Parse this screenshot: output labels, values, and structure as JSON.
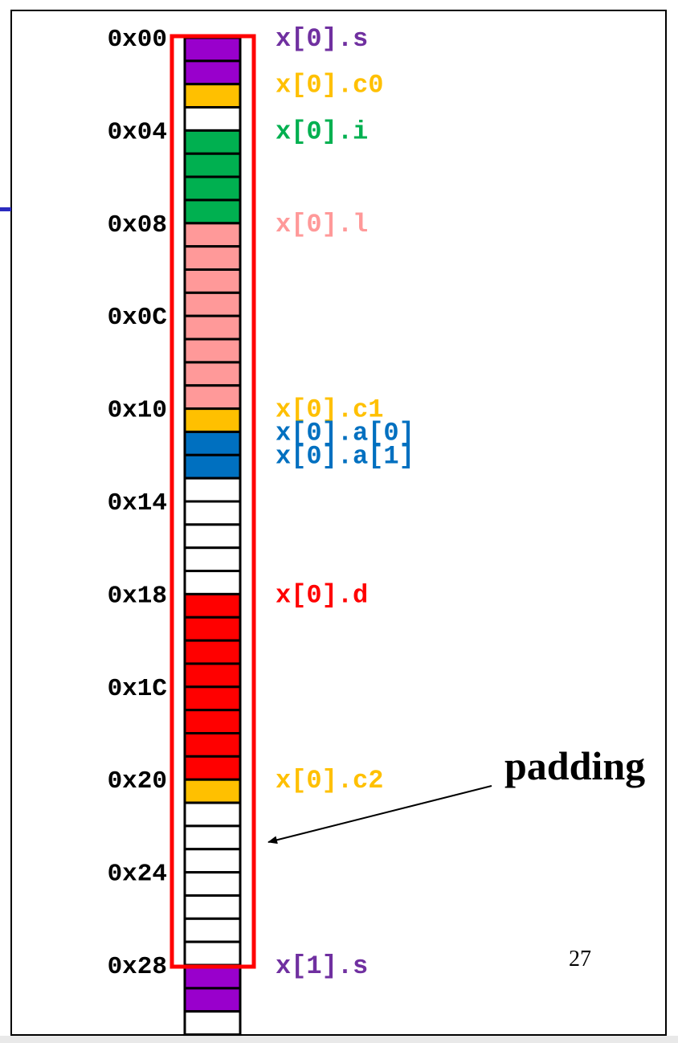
{
  "colors": {
    "s": "#9900cc",
    "c": "#ffc000",
    "i": "#00b050",
    "l": "#ff9999",
    "a": "#0070c0",
    "d": "#ff0000",
    "empty": "#ffffff",
    "highlight": "#ff0000"
  },
  "memory": {
    "bytes": [
      "s",
      "s",
      "c",
      "empty",
      "i",
      "i",
      "i",
      "i",
      "l",
      "l",
      "l",
      "l",
      "l",
      "l",
      "l",
      "l",
      "c",
      "a",
      "a",
      "empty",
      "empty",
      "empty",
      "empty",
      "empty",
      "d",
      "d",
      "d",
      "d",
      "d",
      "d",
      "d",
      "d",
      "c",
      "empty",
      "empty",
      "empty",
      "empty",
      "empty",
      "empty",
      "empty",
      "s",
      "s",
      "empty"
    ],
    "highlight_range": [
      0,
      39
    ]
  },
  "addresses": [
    {
      "text": "0x00",
      "byte": 0
    },
    {
      "text": "0x04",
      "byte": 4
    },
    {
      "text": "0x08",
      "byte": 8
    },
    {
      "text": "0x0C",
      "byte": 12
    },
    {
      "text": "0x10",
      "byte": 16
    },
    {
      "text": "0x14",
      "byte": 20
    },
    {
      "text": "0x18",
      "byte": 24
    },
    {
      "text": "0x1C",
      "byte": 28
    },
    {
      "text": "0x20",
      "byte": 32
    },
    {
      "text": "0x24",
      "byte": 36
    },
    {
      "text": "0x28",
      "byte": 40
    }
  ],
  "fields": [
    {
      "text": "x[0].s",
      "byte": 0,
      "color": "#7030a0"
    },
    {
      "text": "x[0].c0",
      "byte": 2,
      "color": "#ffc000"
    },
    {
      "text": "x[0].i",
      "byte": 4,
      "color": "#00b050"
    },
    {
      "text": "x[0].l",
      "byte": 8,
      "color": "#ff9999"
    },
    {
      "text": "x[0].c1",
      "byte": 16,
      "color": "#ffc000"
    },
    {
      "text": "x[0].a[0]",
      "byte": 17,
      "color": "#0070c0"
    },
    {
      "text": "x[0].a[1]",
      "byte": 18,
      "color": "#0070c0"
    },
    {
      "text": "x[0].d",
      "byte": 24,
      "color": "#ff0000"
    },
    {
      "text": "x[0].c2",
      "byte": 32,
      "color": "#ffc000"
    },
    {
      "text": "x[1].s",
      "byte": 40,
      "color": "#7030a0"
    }
  ],
  "padding_label": "padding",
  "page_number": "27"
}
